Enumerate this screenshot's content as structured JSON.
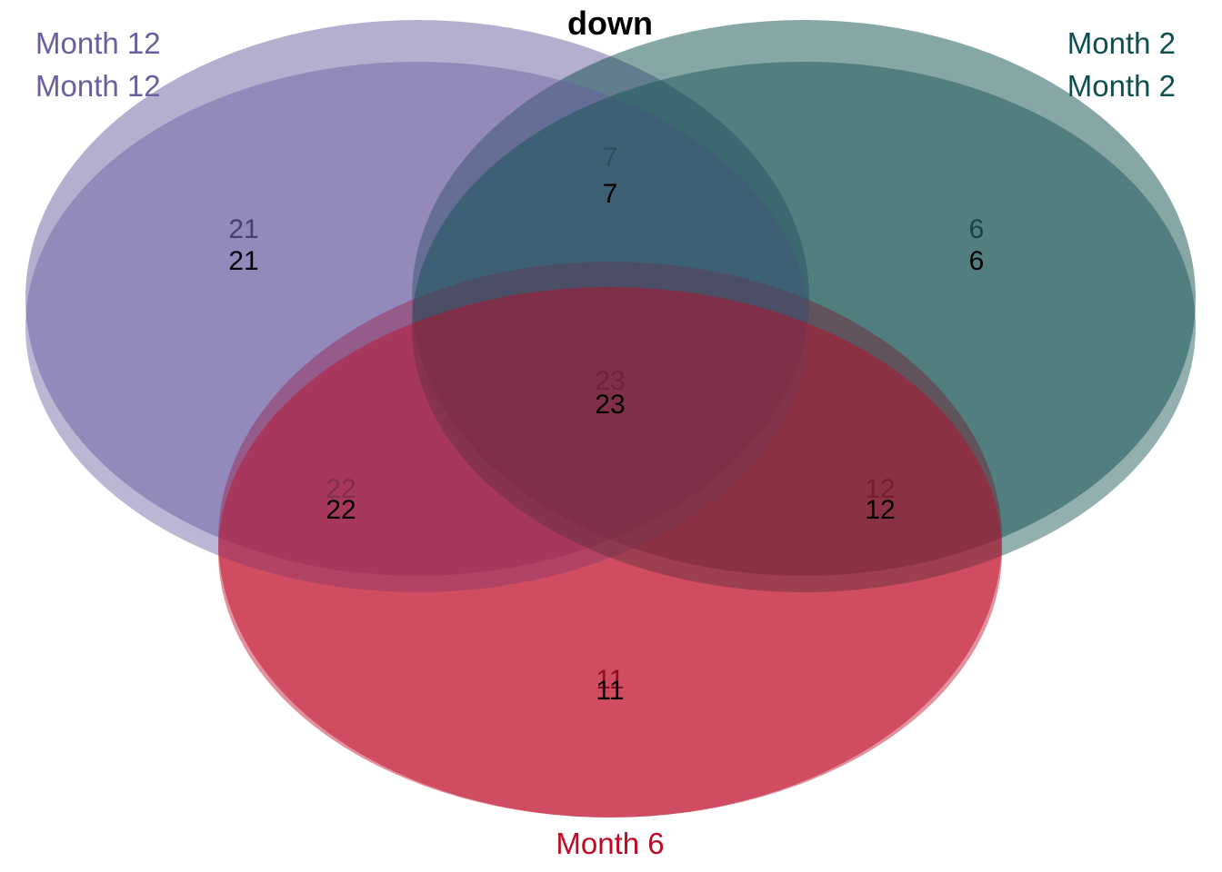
{
  "chart_data": {
    "type": "venn",
    "title": "down",
    "sets": [
      {
        "name": "Month 12",
        "color": "#6A5E9F"
      },
      {
        "name": "Month 2",
        "color": "#0F4E4E"
      },
      {
        "name": "Month 6",
        "color": "#BE0A26"
      }
    ],
    "regions": [
      {
        "sets": [
          "Month 12"
        ],
        "value": 21
      },
      {
        "sets": [
          "Month 2"
        ],
        "value": 6
      },
      {
        "sets": [
          "Month 6"
        ],
        "value": 11
      },
      {
        "sets": [
          "Month 12",
          "Month 2"
        ],
        "value": 7
      },
      {
        "sets": [
          "Month 12",
          "Month 6"
        ],
        "value": 22
      },
      {
        "sets": [
          "Month 2",
          "Month 6"
        ],
        "value": 12
      },
      {
        "sets": [
          "Month 12",
          "Month 2",
          "Month 6"
        ],
        "value": 23
      }
    ]
  }
}
